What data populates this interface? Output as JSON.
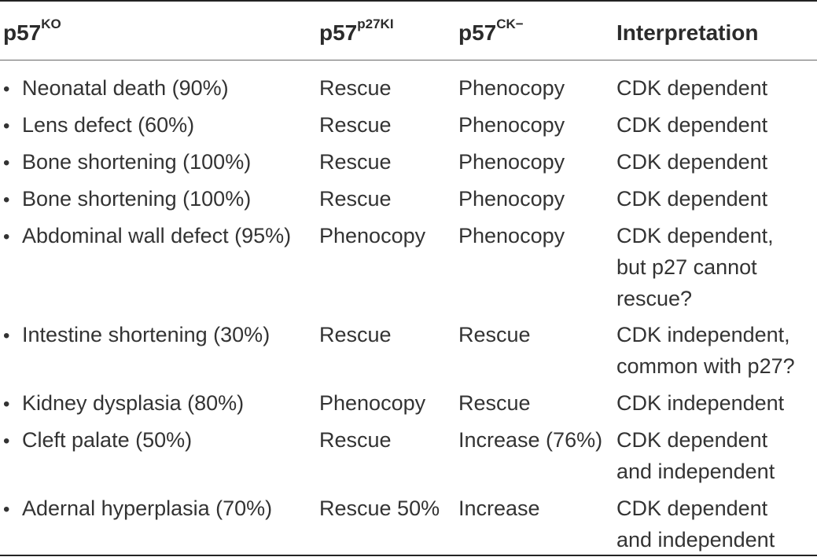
{
  "header": {
    "col1_base": "p57",
    "col1_sup": "KO",
    "col2_base": "p57",
    "col2_sup": "p27KI",
    "col3_base": "p57",
    "col3_sup": "CK−",
    "col4": "Interpretation"
  },
  "rows": [
    {
      "phenotype": "Neonatal death (90%)",
      "p27ki": "Rescue",
      "ck": "Phenocopy",
      "interp": [
        "CDK dependent"
      ]
    },
    {
      "phenotype": "Lens defect (60%)",
      "p27ki": "Rescue",
      "ck": "Phenocopy",
      "interp": [
        "CDK dependent"
      ]
    },
    {
      "phenotype": "Bone shortening (100%)",
      "p27ki": "Rescue",
      "ck": "Phenocopy",
      "interp": [
        "CDK dependent"
      ]
    },
    {
      "phenotype": "Bone shortening (100%)",
      "p27ki": "Rescue",
      "ck": "Phenocopy",
      "interp": [
        "CDK dependent"
      ]
    },
    {
      "phenotype": "Abdominal wall defect (95%)",
      "p27ki": "Phenocopy",
      "ck": "Phenocopy",
      "interp": [
        "CDK dependent,",
        "but p27 cannot",
        "rescue?"
      ]
    },
    {
      "phenotype": "Intestine shortening (30%)",
      "p27ki": "Rescue",
      "ck": "Rescue",
      "interp": [
        "CDK independent,",
        "common with p27?"
      ]
    },
    {
      "phenotype": "Kidney dysplasia (80%)",
      "p27ki": "Phenocopy",
      "ck": "Rescue",
      "interp": [
        "CDK independent"
      ]
    },
    {
      "phenotype": "Cleft palate (50%)",
      "p27ki": "Rescue",
      "ck": "Increase (76%)",
      "interp": [
        "CDK dependent",
        "and independent"
      ]
    },
    {
      "phenotype": "Adernal hyperplasia (70%)",
      "p27ki": "Rescue 50%",
      "ck": "Increase",
      "interp": [
        "CDK dependent",
        "and independent"
      ]
    }
  ]
}
